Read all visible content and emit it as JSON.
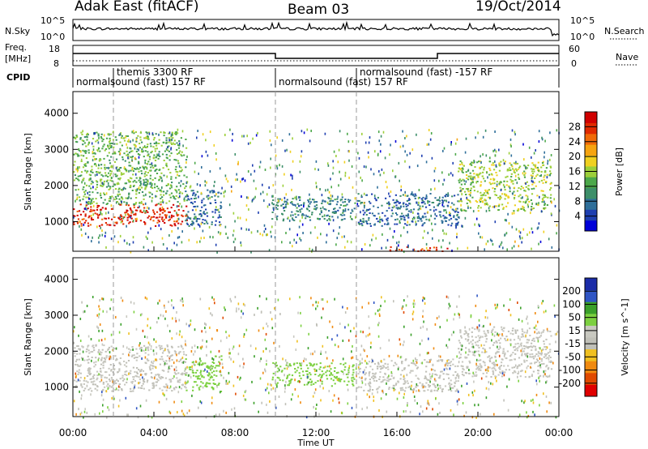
{
  "header": {
    "station": "Adak East (fitACF)",
    "beam": "Beam 03",
    "date": "19/Oct/2014"
  },
  "side_labels": {
    "nsky": "N.Sky",
    "nsearch": "N.Search",
    "freq_line1": "Freq.",
    "freq_line2": "[MHz]",
    "nave": "Nave",
    "cpid": "CPID"
  },
  "noise_axis": {
    "left_ticks": [
      "10^5",
      "10^0"
    ],
    "right_ticks": [
      "10^5",
      "10^0"
    ]
  },
  "freq_axis": {
    "left_ticks": [
      "18",
      "8"
    ],
    "right_ticks": [
      "60",
      "0"
    ]
  },
  "cpid_segments": [
    {
      "label": "themis 3300 RF",
      "start_h": 2,
      "end_h": 2.3,
      "row": "top"
    },
    {
      "label": "normalsound (fast) 157 RF",
      "start_h": 0,
      "end_h": 10,
      "row": "bottom"
    },
    {
      "label": "normalsound (fast) 157 RF",
      "start_h": 10,
      "end_h": 14,
      "row": "bottom"
    },
    {
      "label": "normalsound (fast) -157 RF",
      "start_h": 14,
      "end_h": 24,
      "row": "top"
    }
  ],
  "chart_data": [
    {
      "type": "heatmap",
      "parameter": "power",
      "xlabel": "Time UT",
      "ylabel": "Slant Range [km]",
      "xlim_hours": [
        0,
        24
      ],
      "ylim_km": [
        180,
        4600
      ],
      "x_ticks": [
        "00:00",
        "04:00",
        "08:00",
        "12:00",
        "16:00",
        "20:00",
        "00:00"
      ],
      "y_ticks": [
        1000,
        2000,
        3000,
        4000
      ],
      "colorbar_label": "Power [dB]",
      "colorbar_ticks": [
        4,
        8,
        12,
        16,
        20,
        24,
        28
      ],
      "colorbar_colors": [
        "#0000d8",
        "#1e3fb0",
        "#2f6f9a",
        "#3d8f6a",
        "#4ca84a",
        "#9ccf3a",
        "#f0d020",
        "#f6a410",
        "#f06a08",
        "#e02a00",
        "#d00000"
      ],
      "regions": [
        {
          "t": [
            0.0,
            5.6
          ],
          "r": [
            900,
            1500
          ],
          "value": 27
        },
        {
          "t": [
            0.0,
            5.6
          ],
          "r": [
            1500,
            3500
          ],
          "value": 14
        },
        {
          "t": [
            5.5,
            7.3
          ],
          "r": [
            900,
            1900
          ],
          "value": 8
        },
        {
          "t": [
            9.8,
            13.9
          ],
          "r": [
            1050,
            1700
          ],
          "value": 10
        },
        {
          "t": [
            14.0,
            19.0
          ],
          "r": [
            900,
            1800
          ],
          "value": 8
        },
        {
          "t": [
            19.0,
            23.6
          ],
          "r": [
            1300,
            2700
          ],
          "value": 16
        },
        {
          "t": [
            15.6,
            18.5
          ],
          "r": [
            200,
            320
          ],
          "value": 26
        }
      ]
    },
    {
      "type": "heatmap",
      "parameter": "velocity",
      "xlabel": "Time UT",
      "ylabel": "Slant Range [km]",
      "xlim_hours": [
        0,
        24
      ],
      "ylim_km": [
        180,
        4600
      ],
      "x_ticks": [
        "00:00",
        "04:00",
        "08:00",
        "12:00",
        "16:00",
        "20:00",
        "00:00"
      ],
      "y_ticks": [
        1000,
        2000,
        3000,
        4000
      ],
      "colorbar_label": "Velocity [m s^-1]",
      "colorbar_ticks": [
        "200",
        "100",
        "50",
        "15",
        "-15",
        "-50",
        "-100",
        "-200"
      ],
      "colorbar_colors": [
        "#1b2ca8",
        "#2f55c4",
        "#3aa02a",
        "#7cd040",
        "#c8c8c0",
        "#c0c0b8",
        "#f0c020",
        "#f08a10",
        "#e04a00",
        "#e00000"
      ],
      "regions": [
        {
          "t": [
            0.0,
            5.6
          ],
          "r": [
            900,
            2200
          ],
          "value": 0
        },
        {
          "t": [
            5.5,
            7.3
          ],
          "r": [
            900,
            1900
          ],
          "value": 60
        },
        {
          "t": [
            9.8,
            13.9
          ],
          "r": [
            1050,
            1700
          ],
          "value": 60
        },
        {
          "t": [
            14.0,
            19.0
          ],
          "r": [
            900,
            1800
          ],
          "value": 0
        },
        {
          "t": [
            19.0,
            23.6
          ],
          "r": [
            1300,
            2700
          ],
          "value": 0
        }
      ]
    }
  ]
}
